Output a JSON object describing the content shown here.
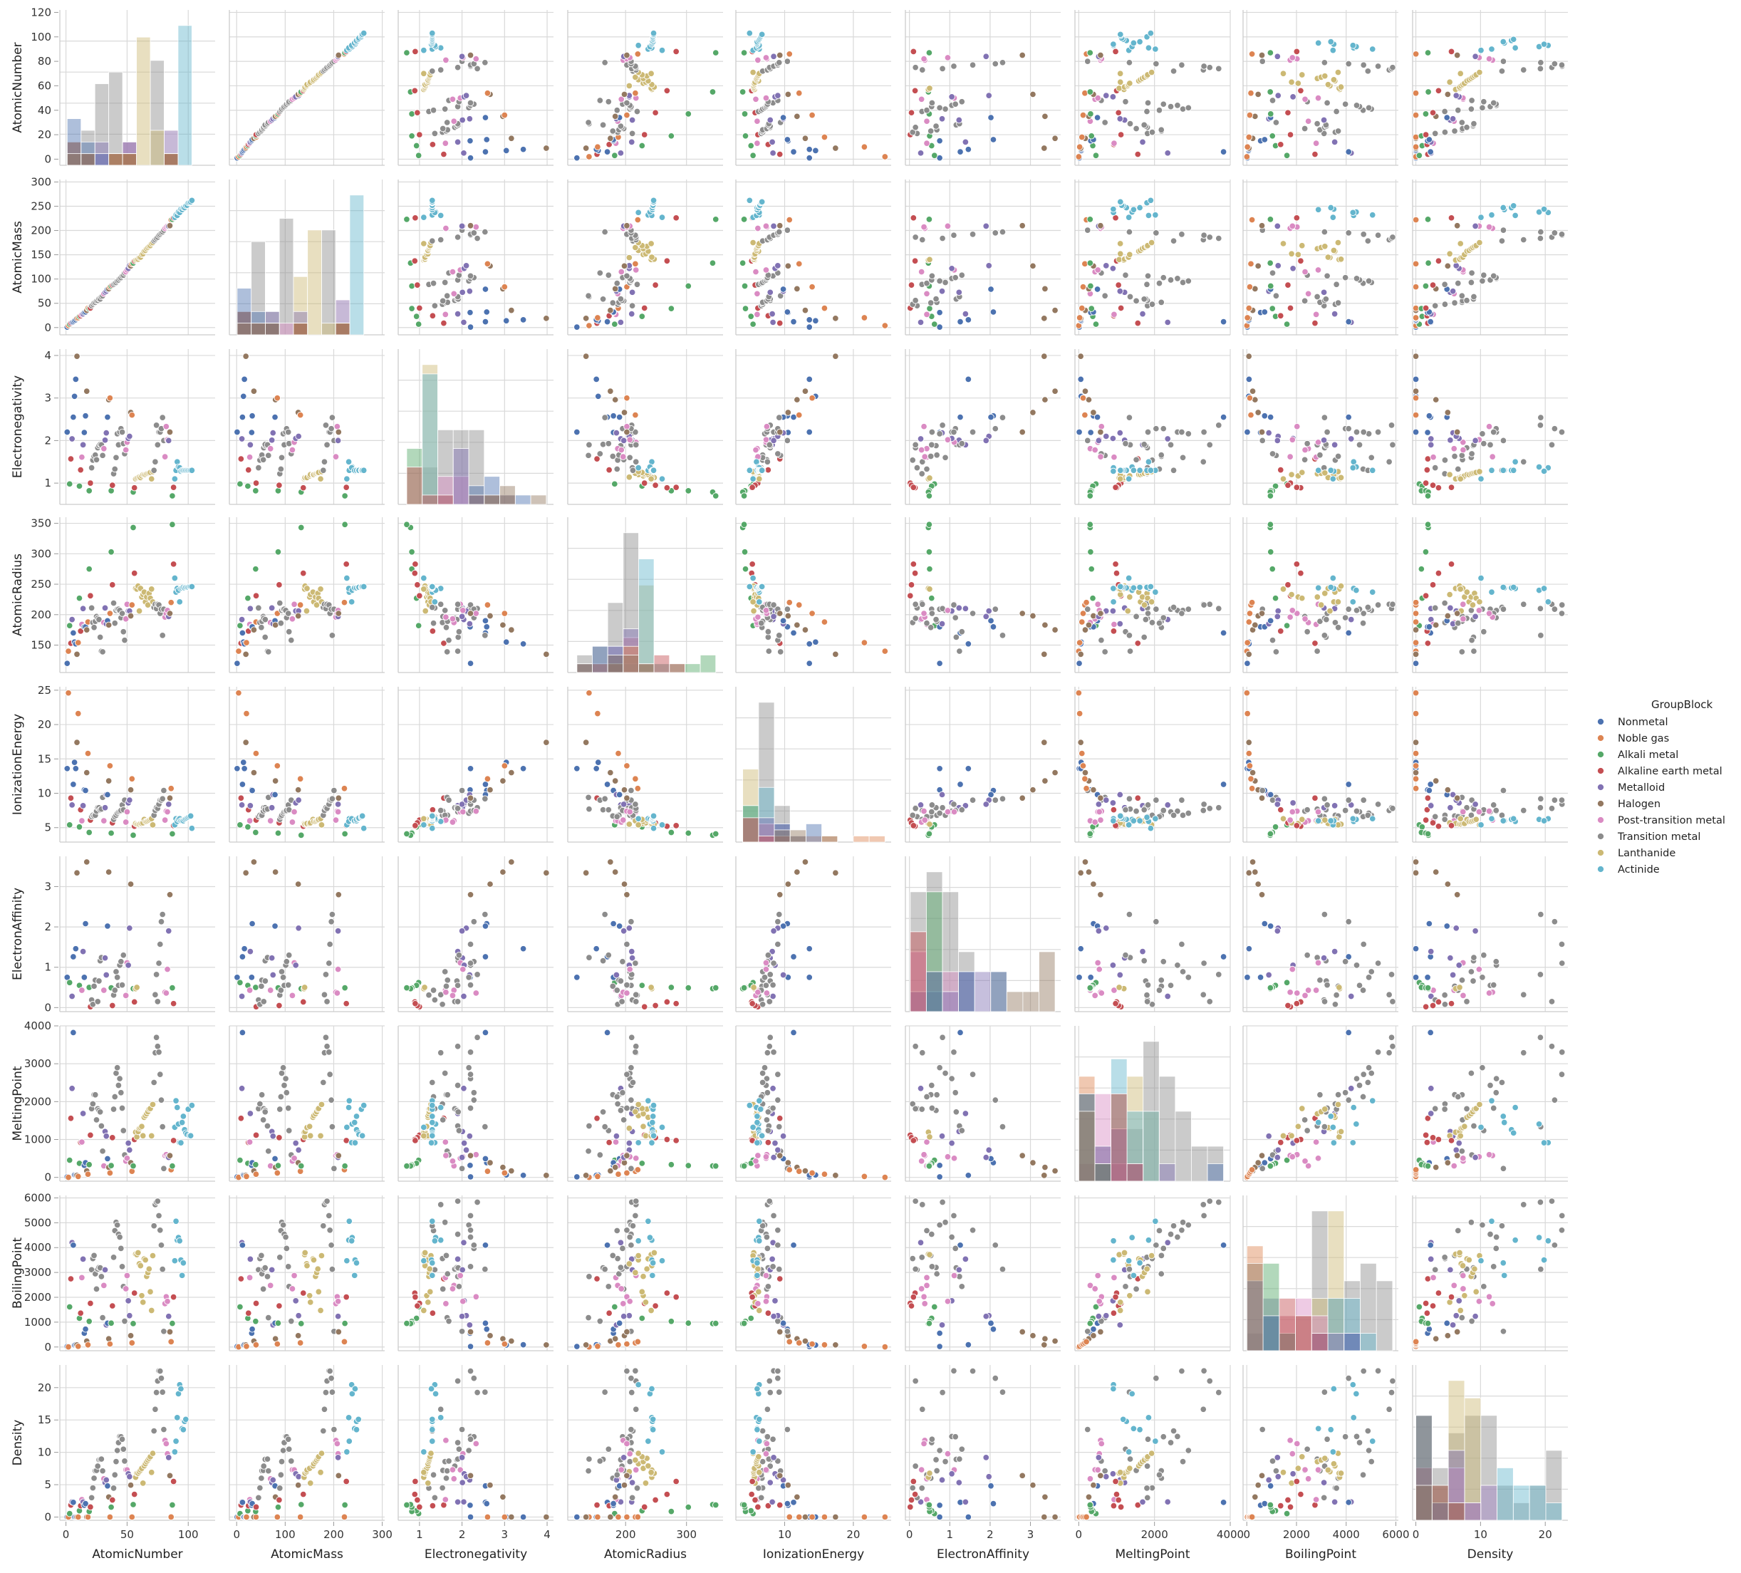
{
  "chart_data": {
    "type": "scatter",
    "kind": "pairplot",
    "variables": [
      "AtomicNumber",
      "AtomicMass",
      "Electronegativity",
      "AtomicRadius",
      "IonizationEnergy",
      "ElectronAffinity",
      "MeltingPoint",
      "BoilingPoint",
      "Density"
    ],
    "ranges": {
      "AtomicNumber": [
        -5,
        122
      ],
      "AtomicMass": [
        -15,
        305
      ],
      "Electronegativity": [
        0.5,
        4.15
      ],
      "AtomicRadius": [
        105,
        360
      ],
      "IonizationEnergy": [
        2.9,
        25.5
      ],
      "ElectronAffinity": [
        -0.1,
        3.75
      ],
      "MeltingPoint": [
        -100,
        4000
      ],
      "BoilingPoint": [
        -150,
        6100
      ],
      "Density": [
        -0.5,
        23.5
      ]
    },
    "ticks": {
      "AtomicNumber": [
        0,
        20,
        40,
        60,
        80,
        100,
        120
      ],
      "AtomicNumber_x": [
        0,
        50,
        100
      ],
      "AtomicMass": [
        0,
        50,
        100,
        150,
        200,
        250,
        300
      ],
      "AtomicMass_x": [
        0,
        100,
        200,
        300
      ],
      "Electronegativity": [
        1,
        2,
        3,
        4
      ],
      "AtomicRadius": [
        150,
        200,
        250,
        300,
        350
      ],
      "AtomicRadius_x": [
        200,
        300
      ],
      "IonizationEnergy": [
        5,
        10,
        15,
        20,
        25
      ],
      "IonizationEnergy_x": [
        10,
        20
      ],
      "ElectronAffinity": [
        0,
        1,
        2,
        3
      ],
      "MeltingPoint": [
        0,
        1000,
        2000,
        3000,
        4000
      ],
      "MeltingPoint_x": [
        0,
        2000,
        4000
      ],
      "BoilingPoint": [
        0,
        1000,
        2000,
        3000,
        4000,
        5000,
        6000
      ],
      "BoilingPoint_x": [
        0,
        2000,
        4000,
        6000
      ],
      "Density": [
        0,
        5,
        10,
        15,
        20
      ],
      "Density_x": [
        0,
        10,
        20
      ]
    },
    "legend": {
      "title": "GroupBlock",
      "placement": "right",
      "entries": [
        {
          "name": "Nonmetal",
          "color": "#4c72b0"
        },
        {
          "name": "Noble gas",
          "color": "#dd8452"
        },
        {
          "name": "Alkali metal",
          "color": "#55a868"
        },
        {
          "name": "Alkaline earth metal",
          "color": "#c44e52"
        },
        {
          "name": "Metalloid",
          "color": "#8172b3"
        },
        {
          "name": "Halogen",
          "color": "#937860"
        },
        {
          "name": "Post-transition metal",
          "color": "#da8bc3"
        },
        {
          "name": "Transition metal",
          "color": "#8c8c8c"
        },
        {
          "name": "Lanthanide",
          "color": "#ccb974"
        },
        {
          "name": "Actinide",
          "color": "#64b5cd"
        }
      ]
    },
    "fields": [
      "group",
      "AtomicNumber",
      "AtomicMass",
      "Electronegativity",
      "AtomicRadius",
      "IonizationEnergy",
      "ElectronAffinity",
      "MeltingPoint",
      "BoilingPoint",
      "Density"
    ],
    "rows": [
      [
        0,
        1,
        1.0,
        2.2,
        120,
        13.6,
        0.75,
        14,
        20,
        0.0
      ],
      [
        1,
        2,
        4.0,
        null,
        140,
        24.6,
        null,
        1,
        4,
        0.0
      ],
      [
        2,
        3,
        6.9,
        0.98,
        182,
        5.4,
        0.62,
        454,
        1615,
        0.53
      ],
      [
        3,
        4,
        9.0,
        1.57,
        153,
        9.3,
        null,
        1560,
        2744,
        1.85
      ],
      [
        4,
        5,
        10.8,
        2.04,
        192,
        8.3,
        0.28,
        2349,
        4200,
        2.34
      ],
      [
        0,
        6,
        12.0,
        2.55,
        170,
        11.3,
        1.26,
        3823,
        4098,
        2.27
      ],
      [
        0,
        7,
        14.0,
        3.04,
        155,
        14.5,
        null,
        63,
        77,
        0.0
      ],
      [
        0,
        8,
        16.0,
        3.44,
        152,
        13.6,
        1.46,
        54,
        90,
        0.0
      ],
      [
        5,
        9,
        19.0,
        3.98,
        135,
        17.4,
        3.34,
        53,
        85,
        0.0
      ],
      [
        1,
        10,
        20.2,
        null,
        154,
        21.6,
        null,
        25,
        27,
        0.0
      ],
      [
        2,
        11,
        23.0,
        0.93,
        227,
        5.1,
        0.55,
        371,
        1156,
        0.97
      ],
      [
        3,
        12,
        24.3,
        1.31,
        173,
        7.6,
        null,
        923,
        1363,
        1.74
      ],
      [
        6,
        13,
        27.0,
        1.61,
        184,
        6.0,
        0.43,
        933,
        2792,
        2.7
      ],
      [
        4,
        14,
        28.1,
        1.9,
        210,
        8.2,
        1.39,
        1687,
        3538,
        2.33
      ],
      [
        0,
        15,
        31.0,
        2.19,
        180,
        10.5,
        0.75,
        317,
        554,
        1.82
      ],
      [
        0,
        16,
        32.1,
        2.58,
        180,
        10.4,
        2.08,
        388,
        718,
        2.07
      ],
      [
        5,
        17,
        35.5,
        3.16,
        175,
        13.0,
        3.61,
        172,
        239,
        0.0
      ],
      [
        1,
        18,
        39.9,
        null,
        188,
        15.8,
        null,
        84,
        87,
        0.0
      ],
      [
        2,
        19,
        39.1,
        0.82,
        275,
        4.3,
        0.5,
        337,
        1032,
        0.86
      ],
      [
        3,
        20,
        40.1,
        1.0,
        231,
        6.1,
        0.02,
        1115,
        1757,
        1.55
      ],
      [
        7,
        21,
        45.0,
        1.36,
        211,
        6.6,
        0.19,
        1814,
        3109,
        2.99
      ],
      [
        7,
        22,
        47.9,
        1.54,
        187,
        6.8,
        0.08,
        1941,
        3560,
        4.5
      ],
      [
        7,
        23,
        50.9,
        1.63,
        179,
        6.7,
        0.53,
        2183,
        3680,
        6.0
      ],
      [
        7,
        24,
        52.0,
        1.66,
        189,
        6.8,
        0.68,
        2180,
        2944,
        7.15
      ],
      [
        7,
        25,
        54.9,
        1.55,
        197,
        7.4,
        null,
        1519,
        2334,
        7.21
      ],
      [
        7,
        26,
        55.8,
        1.83,
        194,
        7.9,
        0.15,
        1811,
        3134,
        7.87
      ],
      [
        7,
        27,
        58.9,
        1.88,
        192,
        7.9,
        0.66,
        1768,
        3200,
        8.86
      ],
      [
        7,
        28,
        58.7,
        1.91,
        163,
        7.6,
        1.16,
        1728,
        3186,
        8.91
      ],
      [
        7,
        29,
        63.5,
        1.9,
        140,
        7.7,
        1.24,
        1358,
        2835,
        8.96
      ],
      [
        7,
        30,
        65.4,
        1.65,
        139,
        9.4,
        null,
        693,
        1180,
        7.13
      ],
      [
        6,
        31,
        69.7,
        1.81,
        187,
        6.0,
        0.43,
        303,
        2477,
        5.91
      ],
      [
        4,
        32,
        72.6,
        2.01,
        211,
        7.9,
        1.23,
        1211,
        3106,
        5.32
      ],
      [
        4,
        33,
        74.9,
        2.18,
        185,
        9.8,
        0.81,
        1090,
        887,
        5.73
      ],
      [
        0,
        34,
        79.0,
        2.55,
        190,
        9.8,
        2.02,
        494,
        958,
        4.81
      ],
      [
        5,
        35,
        79.9,
        2.96,
        183,
        11.8,
        3.36,
        266,
        332,
        3.1
      ],
      [
        1,
        36,
        83.8,
        3.0,
        202,
        14.0,
        null,
        116,
        120,
        0.0
      ],
      [
        2,
        37,
        85.5,
        0.82,
        303,
        4.2,
        0.49,
        312,
        961,
        1.53
      ],
      [
        3,
        38,
        87.6,
        0.95,
        249,
        5.7,
        0.05,
        1050,
        1655,
        2.64
      ],
      [
        7,
        39,
        88.9,
        1.22,
        219,
        6.2,
        0.31,
        1799,
        3609,
        4.47
      ],
      [
        7,
        40,
        91.2,
        1.33,
        186,
        6.6,
        0.43,
        2128,
        4682,
        6.52
      ],
      [
        7,
        41,
        92.9,
        1.6,
        207,
        6.8,
        0.89,
        2750,
        5017,
        8.57
      ],
      [
        7,
        42,
        96.0,
        2.16,
        209,
        7.1,
        0.75,
        2896,
        4912,
        10.28
      ],
      [
        7,
        43,
        98.0,
        1.9,
        209,
        7.3,
        0.55,
        2430,
        4538,
        11.5
      ],
      [
        7,
        44,
        101.1,
        2.2,
        207,
        7.4,
        1.05,
        2607,
        4423,
        12.45
      ],
      [
        7,
        45,
        102.9,
        2.28,
        195,
        7.5,
        1.14,
        2237,
        3968,
        12.41
      ],
      [
        7,
        46,
        106.4,
        2.2,
        202,
        8.3,
        0.56,
        1828,
        3236,
        12.02
      ],
      [
        7,
        47,
        107.9,
        1.93,
        172,
        7.6,
        1.3,
        1235,
        2435,
        10.49
      ],
      [
        7,
        48,
        112.4,
        1.69,
        158,
        9.0,
        null,
        594,
        1040,
        8.65
      ],
      [
        6,
        49,
        114.8,
        1.78,
        193,
        5.8,
        0.3,
        430,
        2345,
        7.31
      ],
      [
        6,
        50,
        118.7,
        1.96,
        217,
        7.3,
        1.11,
        505,
        2875,
        7.29
      ],
      [
        4,
        51,
        121.8,
        2.05,
        206,
        8.6,
        1.05,
        904,
        1860,
        6.68
      ],
      [
        4,
        52,
        127.6,
        2.1,
        206,
        9.0,
        1.97,
        723,
        1261,
        6.24
      ],
      [
        5,
        53,
        126.9,
        2.66,
        198,
        10.5,
        3.06,
        387,
        457,
        4.93
      ],
      [
        1,
        54,
        131.3,
        2.6,
        216,
        12.1,
        null,
        161,
        165,
        0.0
      ],
      [
        2,
        55,
        132.9,
        0.79,
        343,
        3.9,
        0.47,
        302,
        944,
        1.93
      ],
      [
        3,
        56,
        137.3,
        0.89,
        268,
        5.2,
        0.14,
        1000,
        2170,
        3.51
      ],
      [
        8,
        57,
        138.9,
        1.1,
        243,
        5.6,
        0.47,
        1193,
        3737,
        6.15
      ],
      [
        8,
        58,
        140.1,
        1.12,
        242,
        5.5,
        0.5,
        1068,
        3716,
        6.77
      ],
      [
        8,
        59,
        140.9,
        1.13,
        247,
        5.5,
        null,
        1208,
        3793,
        6.77
      ],
      [
        8,
        60,
        144.2,
        1.14,
        206,
        5.5,
        null,
        1297,
        3347,
        7.01
      ],
      [
        8,
        61,
        145.0,
        1.13,
        243,
        5.6,
        null,
        1315,
        3273,
        7.26
      ],
      [
        8,
        62,
        150.4,
        1.17,
        229,
        5.6,
        null,
        1345,
        2067,
        7.52
      ],
      [
        8,
        63,
        152.0,
        1.2,
        233,
        5.7,
        null,
        1099,
        1802,
        5.24
      ],
      [
        8,
        64,
        157.3,
        1.2,
        237,
        6.2,
        null,
        1585,
        3546,
        7.9
      ],
      [
        8,
        65,
        158.9,
        1.2,
        221,
        5.9,
        null,
        1629,
        3503,
        8.23
      ],
      [
        8,
        66,
        162.5,
        1.22,
        229,
        5.9,
        null,
        1680,
        2840,
        8.55
      ],
      [
        8,
        67,
        164.9,
        1.23,
        216,
        6.0,
        null,
        1734,
        2993,
        8.8
      ],
      [
        8,
        68,
        167.3,
        1.24,
        235,
        6.1,
        null,
        1802,
        3141,
        9.07
      ],
      [
        8,
        69,
        168.9,
        1.25,
        227,
        6.2,
        null,
        1818,
        2223,
        9.32
      ],
      [
        8,
        70,
        173.0,
        1.1,
        242,
        6.3,
        null,
        1097,
        1469,
        6.9
      ],
      [
        8,
        71,
        175.0,
        1.27,
        221,
        5.4,
        null,
        1925,
        3675,
        9.84
      ],
      [
        7,
        72,
        178.5,
        1.3,
        212,
        6.8,
        null,
        2506,
        4876,
        13.31
      ],
      [
        7,
        73,
        180.9,
        1.5,
        217,
        7.5,
        0.32,
        3290,
        5731,
        16.65
      ],
      [
        7,
        74,
        183.8,
        2.36,
        210,
        7.9,
        0.82,
        3695,
        5828,
        19.25
      ],
      [
        7,
        75,
        186.2,
        1.9,
        217,
        7.8,
        0.15,
        3459,
        5869,
        21.02
      ],
      [
        7,
        76,
        190.2,
        2.2,
        216,
        8.4,
        1.1,
        3306,
        5285,
        22.59
      ],
      [
        7,
        77,
        192.2,
        2.2,
        202,
        9.0,
        1.57,
        2719,
        4701,
        22.56
      ],
      [
        7,
        78,
        195.1,
        2.28,
        209,
        9.0,
        2.13,
        2041,
        4098,
        21.45
      ],
      [
        7,
        79,
        197.0,
        2.54,
        166,
        9.2,
        2.31,
        1337,
        3129,
        19.3
      ],
      [
        7,
        80,
        200.6,
        2.0,
        209,
        10.4,
        null,
        234,
        630,
        13.53
      ],
      [
        6,
        81,
        204.4,
        1.62,
        196,
        6.1,
        0.38,
        577,
        1746,
        11.85
      ],
      [
        6,
        82,
        207.2,
        2.33,
        202,
        7.4,
        0.36,
        601,
        2022,
        11.34
      ],
      [
        6,
        83,
        209.0,
        2.02,
        207,
        7.3,
        0.95,
        544,
        1837,
        9.78
      ],
      [
        4,
        84,
        209.0,
        2.0,
        197,
        8.4,
        1.9,
        527,
        1235,
        9.2
      ],
      [
        5,
        85,
        210.0,
        2.2,
        202,
        9.3,
        2.8,
        575,
        610,
        6.4
      ],
      [
        1,
        86,
        222.0,
        null,
        220,
        10.7,
        null,
        202,
        211,
        0.01
      ],
      [
        2,
        87,
        223.0,
        0.7,
        348,
        4.1,
        0.49,
        300,
        950,
        1.87
      ],
      [
        3,
        88,
        226.0,
        0.9,
        283,
        5.3,
        0.1,
        973,
        2010,
        5.5
      ],
      [
        9,
        89,
        227.0,
        1.1,
        260,
        5.4,
        null,
        1323,
        3471,
        10.07
      ],
      [
        9,
        90,
        232.0,
        1.3,
        237,
        6.3,
        null,
        2023,
        5061,
        11.72
      ],
      [
        9,
        91,
        231.0,
        1.5,
        243,
        5.9,
        null,
        1845,
        4300,
        15.37
      ],
      [
        9,
        92,
        238.0,
        1.38,
        240,
        6.2,
        null,
        1408,
        4404,
        19.05
      ],
      [
        9,
        93,
        237.0,
        1.36,
        221,
        6.3,
        null,
        917,
        4273,
        20.45
      ],
      [
        9,
        94,
        244.0,
        1.28,
        243,
        6.0,
        null,
        913,
        3501,
        19.82
      ],
      [
        9,
        95,
        243.0,
        1.3,
        244,
        6.0,
        null,
        1449,
        2880,
        13.67
      ],
      [
        9,
        96,
        247.0,
        1.3,
        245,
        6.0,
        null,
        1613,
        3383,
        13.51
      ],
      [
        9,
        97,
        247.0,
        1.3,
        244,
        6.2,
        null,
        1259,
        null,
        14.78
      ],
      [
        9,
        98,
        251.0,
        1.3,
        245,
        6.3,
        null,
        1173,
        null,
        15.1
      ],
      [
        9,
        99,
        252.0,
        1.3,
        245,
        6.4,
        null,
        1133,
        null,
        null
      ],
      [
        9,
        100,
        257.0,
        1.3,
        245,
        6.5,
        null,
        1800,
        null,
        null
      ],
      [
        9,
        101,
        258.0,
        1.3,
        246,
        6.6,
        null,
        1100,
        null,
        null
      ],
      [
        9,
        102,
        259.0,
        1.3,
        246,
        6.7,
        null,
        1100,
        null,
        null
      ],
      [
        9,
        103,
        262.0,
        1.3,
        246,
        4.9,
        null,
        1900,
        null,
        null
      ]
    ]
  }
}
